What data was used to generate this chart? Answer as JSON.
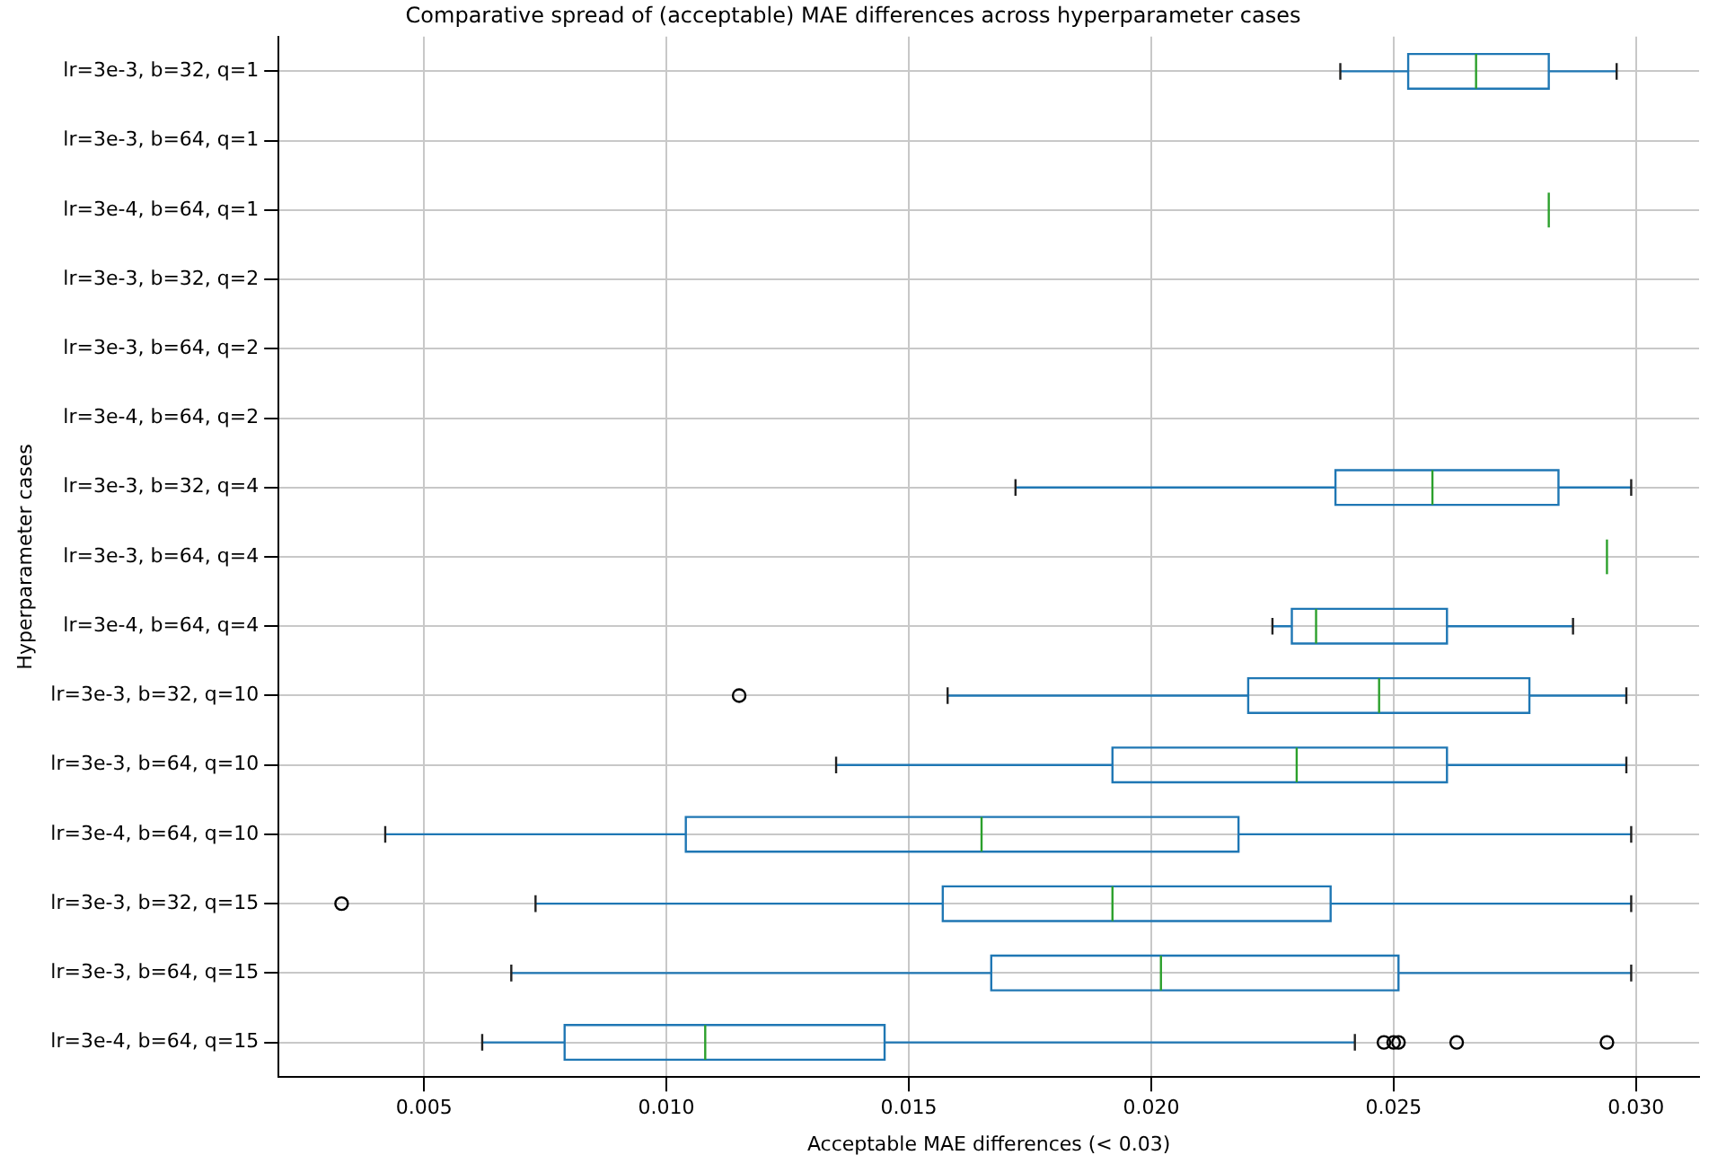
{
  "chart_data": {
    "type": "box",
    "orientation": "horizontal",
    "title": "Comparative spread of (acceptable) MAE differences across hyperparameter cases",
    "xlabel": "Acceptable MAE differences (< 0.03)",
    "ylabel": "Hyperparameter cases",
    "grid": true,
    "categories": [
      "lr=3e-3, b=32, q=1",
      "lr=3e-3, b=64, q=1",
      "lr=3e-4, b=64, q=1",
      "lr=3e-3, b=32, q=2",
      "lr=3e-3, b=64, q=2",
      "lr=3e-4, b=64, q=2",
      "lr=3e-3, b=32, q=4",
      "lr=3e-3, b=64, q=4",
      "lr=3e-4, b=64, q=4",
      "lr=3e-3, b=32, q=10",
      "lr=3e-3, b=64, q=10",
      "lr=3e-4, b=64, q=10",
      "lr=3e-3, b=32, q=15",
      "lr=3e-3, b=64, q=15",
      "lr=3e-4, b=64, q=15"
    ],
    "boxes": [
      {
        "low": 0.0239,
        "q1": 0.0253,
        "median": 0.0267,
        "q3": 0.0282,
        "high": 0.0296
      },
      null,
      {
        "low": 0.0282,
        "q1": 0.0282,
        "median": 0.0282,
        "q3": 0.0282,
        "high": 0.0282
      },
      null,
      null,
      null,
      {
        "low": 0.0172,
        "q1": 0.0238,
        "median": 0.0258,
        "q3": 0.0284,
        "high": 0.0299
      },
      {
        "low": 0.0294,
        "q1": 0.0294,
        "median": 0.0294,
        "q3": 0.0294,
        "high": 0.0294
      },
      {
        "low": 0.0225,
        "q1": 0.0229,
        "median": 0.0234,
        "q3": 0.0261,
        "high": 0.0287
      },
      {
        "low": 0.0158,
        "q1": 0.022,
        "median": 0.0247,
        "q3": 0.0278,
        "high": 0.0298,
        "outliers": [
          0.0115
        ]
      },
      {
        "low": 0.0135,
        "q1": 0.0192,
        "median": 0.023,
        "q3": 0.0261,
        "high": 0.0298
      },
      {
        "low": 0.0042,
        "q1": 0.0104,
        "median": 0.0165,
        "q3": 0.0218,
        "high": 0.0299
      },
      {
        "low": 0.0073,
        "q1": 0.0157,
        "median": 0.0192,
        "q3": 0.0237,
        "high": 0.0299,
        "outliers": [
          0.0033
        ]
      },
      {
        "low": 0.0068,
        "q1": 0.0167,
        "median": 0.0202,
        "q3": 0.0251,
        "high": 0.0299
      },
      {
        "low": 0.0062,
        "q1": 0.0079,
        "median": 0.0108,
        "q3": 0.0145,
        "high": 0.0242,
        "outliers": [
          0.0248,
          0.025,
          0.0251,
          0.0263,
          0.0294
        ]
      }
    ],
    "xlim": [
      0.002,
      0.0313
    ],
    "xticks": [
      0.005,
      {
        "value": 0.01,
        "label": "0.010"
      },
      {
        "value": 0.015,
        "label": "0.015"
      },
      {
        "value": 0.02,
        "label": "0.020"
      },
      {
        "value": 0.025,
        "label": "0.025"
      },
      {
        "value": 0.03,
        "label": "0.030"
      }
    ]
  }
}
